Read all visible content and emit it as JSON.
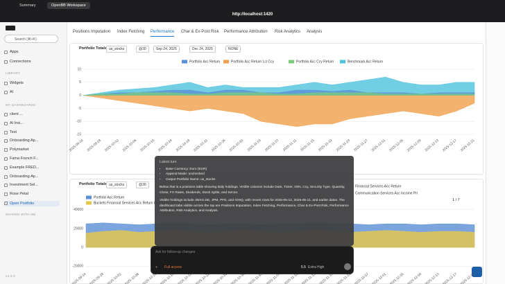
{
  "browser": {
    "tabs": [
      "Summary",
      "OpenBB Workspace"
    ],
    "url": "http://localhost:1420"
  },
  "sidebar": {
    "search": "Search (⌘+K)",
    "nav": [
      "Apps",
      "Connections"
    ],
    "library_heading": "LIBRARY",
    "library": [
      "Widgets",
      "AI"
    ],
    "dashboards_heading": "MY DASHBOARDS",
    "dashboards": [
      "client ...",
      "AI Insi...",
      "Test",
      "Onboarding Ap...",
      "Polymarket",
      "Fama French F...",
      "Example FRED...",
      "Onboarding Ap...",
      "Investment Sel...",
      "Rose Petal",
      "Open Portfolio"
    ],
    "shared_heading": "SHARED WITH ME",
    "version": "v4.0.0"
  },
  "tabs": {
    "items": [
      "Positions Imputation",
      "Index Fetching",
      "Performance",
      "Char & Ex-Post Risk",
      "Performance Attribution",
      "Risk Analytics",
      "Analysis"
    ],
    "active": 2
  },
  "widgets": [
    {
      "title": "Portfolio Totals",
      "controls": [
        "us_stocks",
        "@30",
        "Sep 24, 2025",
        "Dec 24, 2025",
        "NONE"
      ],
      "chart_data": {
        "type": "area",
        "categories": [
          "2025-09-24",
          "2025-09-28",
          "2025-10-02",
          "2025-10-06",
          "2025-10-10",
          "2025-10-14",
          "2025-10-18",
          "2025-10-22",
          "2025-10-26",
          "2025-10-30",
          "2025-11-03",
          "2025-11-07",
          "2025-11-11",
          "2025-11-15",
          "2025-11-19",
          "2025-11-23",
          "2025-11-27",
          "2025-12-01",
          "2025-12-05",
          "2025-12-09",
          "2025-12-13",
          "2025-12-17",
          "2025-12-21"
        ],
        "ylim": [
          -16,
          12
        ],
        "yticks": [
          10,
          5,
          0,
          -5,
          -10,
          -15
        ],
        "grid": true,
        "series": [
          {
            "name": "Portfolio Acc Return Lcl Ccy",
            "color": "#f0a04b",
            "values": [
              0,
              -1,
              -2,
              -3,
              -4,
              -5,
              -6,
              -5,
              -6,
              -7,
              -10,
              -11,
              -12,
              -11,
              -11,
              -9,
              -8,
              -7,
              -6,
              -7,
              -8,
              -6,
              -3
            ]
          },
          {
            "name": "Benchmark Acc Return",
            "color": "#4fc3dc",
            "values": [
              0,
              1,
              2,
              2.5,
              3,
              4,
              5,
              3,
              4,
              3,
              3,
              3,
              4,
              5,
              4,
              5,
              6,
              7,
              5,
              4,
              4,
              5,
              5
            ]
          },
          {
            "name": "Portfolio Acc Return",
            "color": "#5b8fd6",
            "values": [
              0,
              0.5,
              1,
              1,
              1.5,
              2,
              2,
              1,
              2,
              2,
              1,
              1,
              2,
              2,
              1.5,
              2,
              1,
              1,
              1,
              0.5,
              1,
              1,
              1
            ]
          },
          {
            "name": "Portfolio Acc Ccy Return",
            "color": "#7dc97d",
            "values": [
              0,
              0.5,
              0.5,
              1,
              1,
              1,
              0.5,
              0.5,
              1,
              1,
              1,
              0.5,
              0.5,
              1,
              1,
              1,
              1,
              0.5,
              0.5,
              0.5,
              0.5,
              0.5,
              0.5
            ]
          }
        ],
        "legend_order": [
          2,
          0,
          3,
          1
        ]
      }
    },
    {
      "title": "Portfolio Totals",
      "controls": [
        "us_stocks",
        "@30"
      ],
      "pager": "1 / 7",
      "chart_data": {
        "type": "area",
        "categories": [
          "2025-09-24",
          "2025-09-28",
          "2025-10-02",
          "2025-10-06",
          "2025-10-10",
          "2025-10-14",
          "2025-10-18",
          "2025-10-22",
          "2025-10-26",
          "2025-10-30",
          "2025-11-03",
          "2025-11-07",
          "2025-11-11",
          "2025-11-15",
          "2025-11-19",
          "2025-11-23",
          "2025-11-27",
          "2025-12-01",
          "2025-12-05",
          "2025-12-09",
          "2025-12-13",
          "2025-12-17",
          "2025-12-21"
        ],
        "ylim": [
          -25000,
          45000
        ],
        "yticks": [
          40000,
          20000,
          0,
          -20000
        ],
        "grid": true,
        "series": [
          {
            "name": "Portfolio Acc Return",
            "color": "#5b8fd6",
            "values": [
              25000,
              26000,
              25000,
              24000,
              25000,
              26000,
              25000,
              24000,
              25000,
              25000,
              24000,
              25000,
              25000,
              26000,
              25000,
              25000,
              24000,
              25000,
              25000,
              24000,
              25000,
              25000,
              24000
            ]
          },
          {
            "name": "Buckets Financial Services Acc Return Lcl Ccy",
            "color": "#e8c84a",
            "values": [
              15000,
              17000,
              18000,
              16000,
              17000,
              18000,
              17000,
              16000,
              17000,
              18000,
              17000,
              16000,
              17000,
              18000,
              17000,
              16000,
              17000,
              18000,
              17000,
              16000,
              17000,
              17000,
              16000
            ]
          }
        ],
        "legend_order": [
          0,
          1
        ],
        "legend_extra": [
          "Financial Services Acc Return",
          "Communication Services Acc Income Pri"
        ]
      }
    }
  ],
  "chat": {
    "heading": "Latest turn",
    "bullets": [
      "Base Currency: Euro (EUR)",
      "Append Mode: unchecked",
      "Output Portfolio Name: us_stocks"
    ],
    "paragraphs": [
      "Below that is a positions table showing daily holdings. Visible columns include Date, Ticker, ISIN, Ccy, Security Type, Quantity, Close, FX Rates, Dividends, Stock Splits, and Sector.",
      "Visible holdings include 3NXG.DE, JPM, PFE, and IONQ, with recent rows for 2026-05-12, 2026-05-11, and earlier dates. The dashboard tabs visible across the top are Positions Imputation, Index Fetching, Performance, Char & Ex-Post Risk, Performance Attribution, Risk Analytics, and Analysis."
    ],
    "placeholder": "Ask for follow-up changes",
    "access": "Full access",
    "model": "5.5",
    "effort": "Extra High"
  }
}
